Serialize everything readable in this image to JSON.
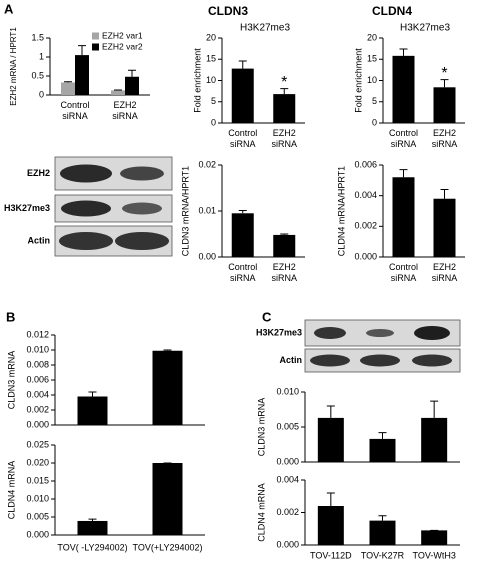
{
  "panel_labels": [
    "A",
    "B",
    "C"
  ],
  "blots": [
    {
      "labels": [
        "EZH2",
        "H3K27me3",
        "Actin"
      ]
    },
    {
      "labels": [
        "H3K27me3",
        "Actin"
      ]
    }
  ],
  "chart_data": [
    {
      "type": "bar",
      "ylabel": "EZH2 mRNA / HPRT1",
      "categories": [
        "Control siRNA",
        "EZH2 siRNA"
      ],
      "series": [
        {
          "name": "EZH2 var1",
          "color": "#a6a6a6",
          "values": [
            0.33,
            0.12
          ],
          "errors": [
            0.02,
            0.01
          ]
        },
        {
          "name": "EZH2 var2",
          "color": "#000000",
          "values": [
            1.05,
            0.48
          ],
          "errors": [
            0.25,
            0.17
          ]
        }
      ],
      "ylim": [
        0,
        1.5
      ],
      "yticks": [
        0,
        0.5,
        1,
        1.5
      ],
      "legend": "upper right"
    },
    {
      "type": "bar",
      "title": "CLDN3",
      "subtitle": "H3K27me3",
      "ylabel": "Fold enrichment",
      "categories": [
        "Control siRNA",
        "EZH2 siRNA"
      ],
      "values": [
        12.8,
        6.8
      ],
      "errors": [
        1.8,
        1.3
      ],
      "color": "#000000",
      "ylim": [
        0,
        20
      ],
      "yticks": [
        0,
        5,
        10,
        15,
        20
      ],
      "annotations": [
        null,
        "*"
      ]
    },
    {
      "type": "bar",
      "title": "CLDN4",
      "subtitle": "H3K27me3",
      "ylabel": "Fold enrichment",
      "categories": [
        "Control siRNA",
        "EZH2 siRNA"
      ],
      "values": [
        15.8,
        8.4
      ],
      "errors": [
        1.6,
        1.8
      ],
      "color": "#000000",
      "ylim": [
        0,
        20
      ],
      "yticks": [
        0,
        5,
        10,
        15,
        20
      ],
      "annotations": [
        null,
        "*"
      ]
    },
    {
      "type": "bar",
      "ylabel": "CLDN3 mRNA/HPRT1",
      "categories": [
        "Control siRNA",
        "EZH2 siRNA"
      ],
      "values": [
        0.0095,
        0.0048
      ],
      "errors": [
        0.0006,
        0.0002
      ],
      "color": "#000000",
      "ylim": [
        0,
        0.02
      ],
      "yticks": [
        {
          "value": 0,
          "label": "0.00"
        },
        0.01,
        0.02
      ]
    },
    {
      "type": "bar",
      "ylabel": "CLDN4 mRNA/HPRT1",
      "categories": [
        "Control siRNA",
        "EZH2 siRNA"
      ],
      "values": [
        0.0052,
        0.0038
      ],
      "errors": [
        0.0005,
        0.0006
      ],
      "color": "#000000",
      "ylim": [
        0,
        0.006
      ],
      "yticks": [
        {
          "value": 0,
          "label": "0.000"
        },
        0.002,
        0.004,
        0.006
      ]
    },
    {
      "type": "bar",
      "ylabel": "CLDN3 mRNA",
      "categories": [
        null,
        null
      ],
      "values": [
        0.0038,
        0.0099
      ],
      "errors": [
        0.0006,
        0.0001
      ],
      "color": "#000000",
      "ylim": [
        0,
        0.012
      ],
      "yticks": [
        {
          "value": 0,
          "label": "0.000"
        },
        0.002,
        0.004,
        0.006,
        0.008,
        {
          "value": 0.01,
          "label": "0.010"
        },
        0.012
      ]
    },
    {
      "type": "bar",
      "ylabel": "CLDN4 mRNA",
      "categories": [
        "TOV( -LY294002)",
        "TOV(+LY294002)"
      ],
      "values": [
        0.0039,
        0.02
      ],
      "errors": [
        0.0005,
        0
      ],
      "color": "#000000",
      "ylim": [
        0,
        0.025
      ],
      "yticks": [
        {
          "value": 0,
          "label": "0.000"
        },
        0.005,
        {
          "value": 0.01,
          "label": "0.010"
        },
        0.015,
        {
          "value": 0.02,
          "label": "0.020"
        },
        0.025
      ]
    },
    {
      "type": "bar",
      "ylabel": "CLDN3 mRNA",
      "categories": [
        null,
        null,
        null
      ],
      "values": [
        0.0063,
        0.0033,
        0.0063
      ],
      "errors": [
        0.0017,
        0.0009,
        0.0024
      ],
      "color": "#000000",
      "ylim": [
        0,
        0.01
      ],
      "yticks": [
        {
          "value": 0,
          "label": "0.000"
        },
        0.005,
        {
          "value": 0.01,
          "label": "0.010"
        }
      ]
    },
    {
      "type": "bar",
      "ylabel": "CLDN4 mRNA",
      "categories": [
        "TOV-112D",
        "TOV-K27R",
        "TOV-WtH3"
      ],
      "values": [
        0.0024,
        0.0015,
        0.0009
      ],
      "errors": [
        0.0008,
        0.0003,
        0
      ],
      "color": "#000000",
      "ylim": [
        0,
        0.004
      ],
      "yticks": [
        {
          "value": 0,
          "label": "0.000"
        },
        0.002,
        0.004
      ]
    }
  ]
}
